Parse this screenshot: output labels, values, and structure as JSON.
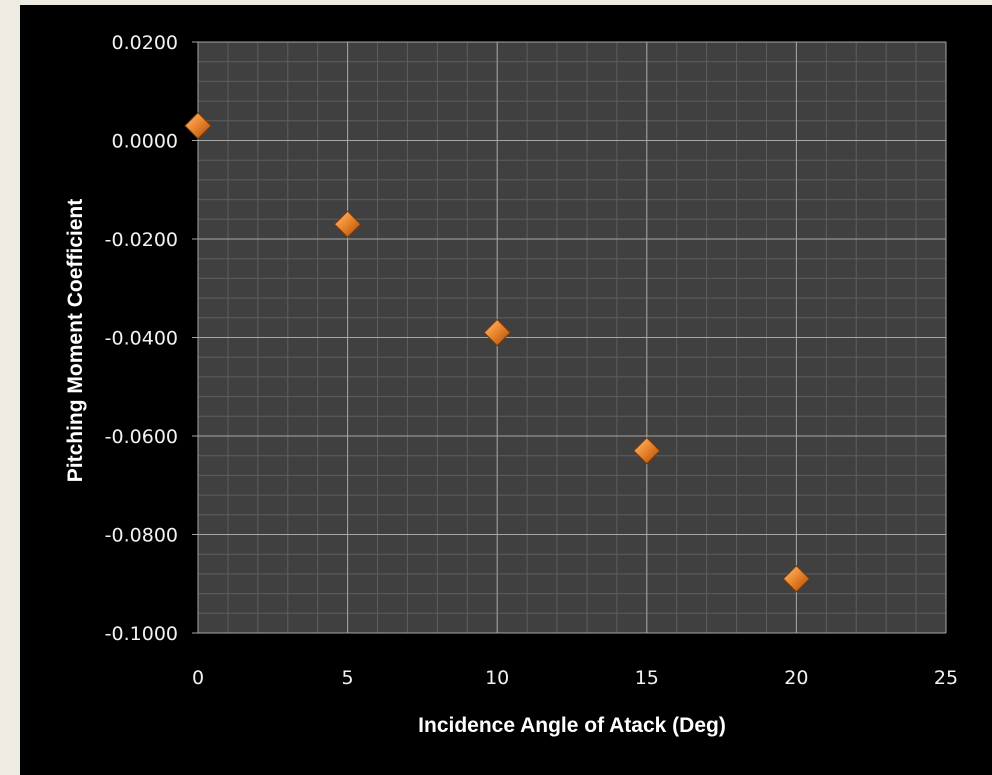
{
  "chart_data": {
    "type": "scatter",
    "title": "",
    "xlabel": "Incidence Angle of Atack (Deg)",
    "ylabel": "Pitching Moment Coefficient",
    "xlim": [
      0,
      25
    ],
    "ylim": [
      -0.1,
      0.02
    ],
    "x_ticks": [
      "0",
      "5",
      "10",
      "15",
      "20",
      "25"
    ],
    "y_ticks": [
      "0.0200",
      "0.0000",
      "-0.0200",
      "-0.0400",
      "-0.0600",
      "-0.0800",
      "-0.1000"
    ],
    "x": [
      0,
      5,
      10,
      15,
      20
    ],
    "y": [
      0.003,
      -0.017,
      -0.039,
      -0.063,
      -0.089
    ],
    "grid": true,
    "legend": "none",
    "colors": {
      "background": "#000000",
      "plot_area": "#404040",
      "marker": "#e8822a",
      "major_grid": "#a6a6a6",
      "minor_grid": "#5e5e5e"
    }
  }
}
